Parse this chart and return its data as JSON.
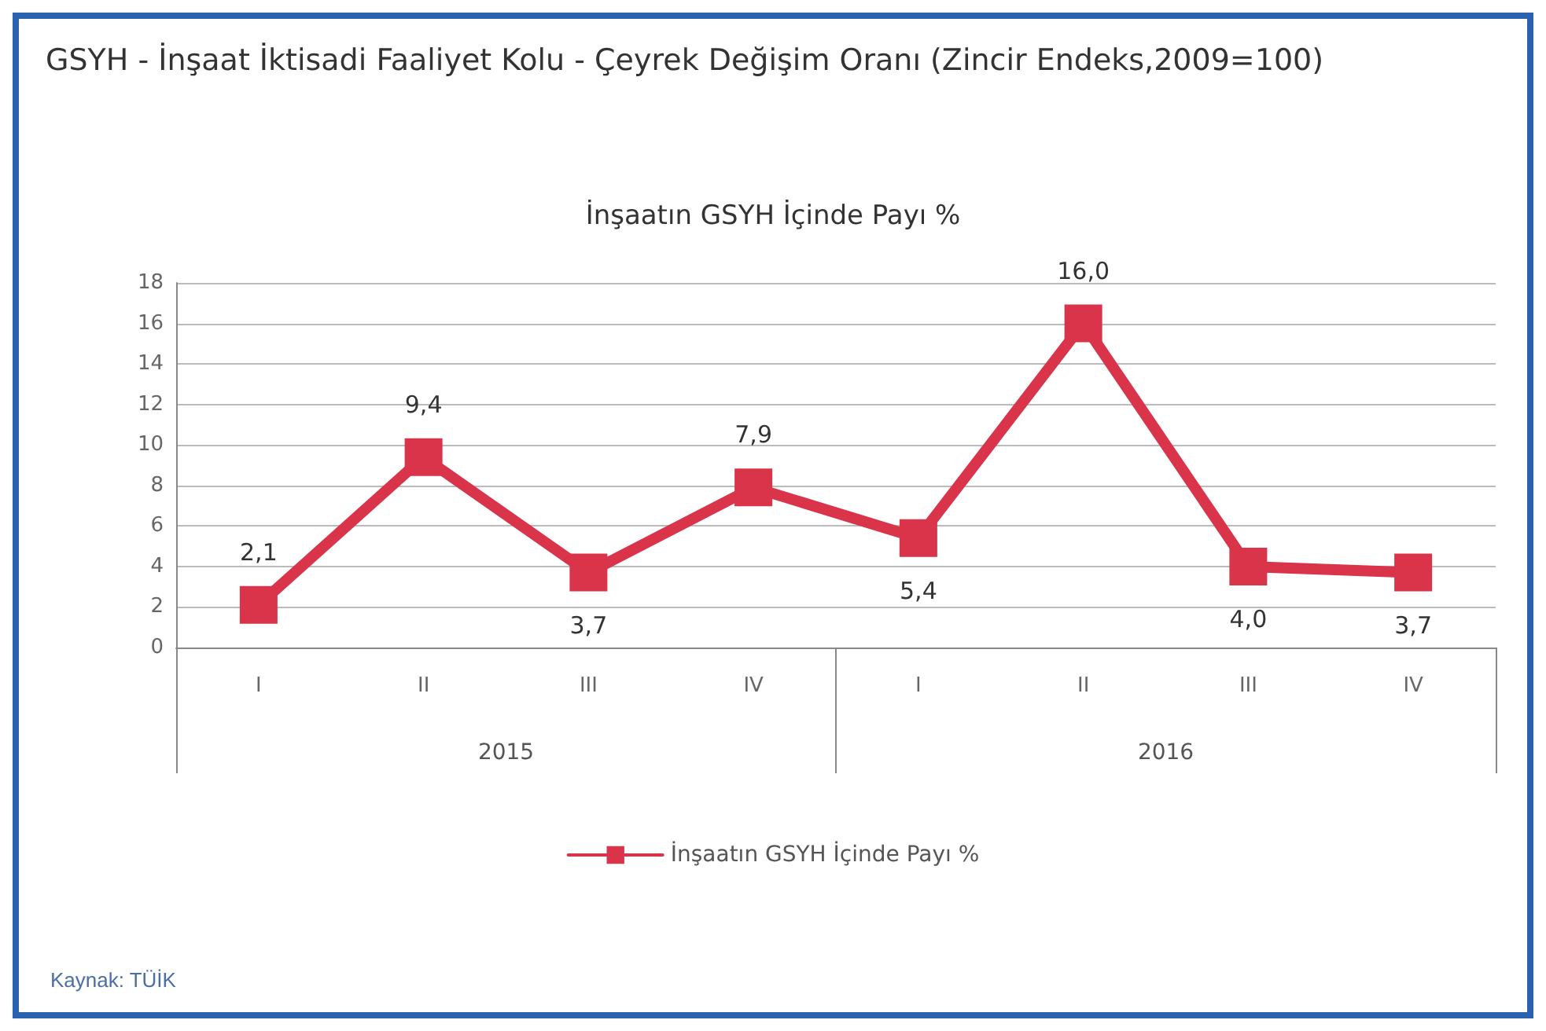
{
  "chart_data": {
    "type": "line",
    "title": "GSYH - İnşaat İktisadi Faaliyet Kolu - Çeyrek Değişim Oranı (Zincir Endeks,2009=100)",
    "subtitle": "İnşaatın GSYH İçinde Payı %",
    "categories": [
      "I",
      "II",
      "III",
      "IV",
      "I",
      "II",
      "III",
      "IV"
    ],
    "series": [
      {
        "name": "İnşaatın GSYH İçinde Payı %",
        "color": "#d9344a",
        "values": [
          2.1,
          9.4,
          3.7,
          7.9,
          5.4,
          16.0,
          4.0,
          3.7
        ],
        "value_labels": [
          "2,1",
          "9,4",
          "3,7",
          "7,9",
          "5,4",
          "16,0",
          "4,0",
          "3,7"
        ]
      }
    ],
    "ylim": [
      0,
      18
    ],
    "yticks": [
      0,
      2,
      4,
      6,
      8,
      10,
      12,
      14,
      16,
      18
    ],
    "grid": "y",
    "legend": "bottom",
    "marker": "square",
    "line_style": "solid",
    "annotations": [
      "2015",
      "2016",
      "Kaynak: TÜİK"
    ]
  }
}
